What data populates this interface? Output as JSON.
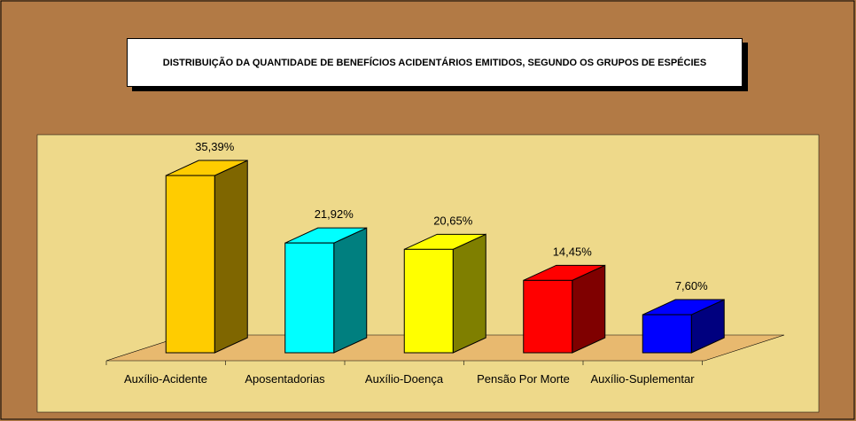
{
  "chart_data": {
    "type": "bar3d",
    "title": "DISTRIBUIÇÃO DA QUANTIDADE DE BENEFÍCIOS ACIDENTÁRIOS EMITIDOS, SEGUNDO OS GRUPOS DE ESPÉCIES",
    "categories": [
      "Auxílio-Acidente",
      "Aposentadorias",
      "Auxílio-Doença",
      "Pensão Por Morte",
      "Auxílio-Suplementar"
    ],
    "values": [
      35.39,
      21.92,
      20.65,
      14.45,
      7.6
    ],
    "value_labels": [
      "35,39%",
      "21,92%",
      "20,65%",
      "14,45%",
      "7,60%"
    ],
    "colors": [
      "#ffcc00",
      "#00ffff",
      "#ffff00",
      "#ff0000",
      "#0000ff"
    ]
  }
}
